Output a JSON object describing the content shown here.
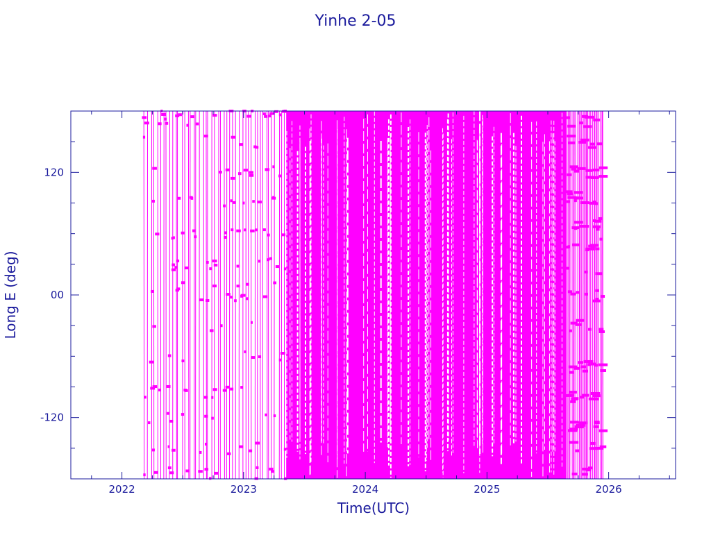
{
  "chart_data": {
    "type": "line",
    "title": "Yinhe 2-05",
    "xlabel": "Time(UTC)",
    "ylabel": "Long E (deg)",
    "xlim": [
      2021.58,
      2026.55
    ],
    "ylim": [
      -180,
      180
    ],
    "x_ticks": [
      "2022",
      "2023",
      "2024",
      "2025",
      "2026"
    ],
    "y_ticks": [
      "120",
      "00",
      "-120"
    ],
    "colors": {
      "axes": "#1a1a9c",
      "series": "#ff00ff"
    },
    "grid": false,
    "legend": "none",
    "series": [
      {
        "style": "dense longitude wraps, sparse early segment",
        "x_range": [
          2022.18,
          2023.35
        ],
        "approx_wrap_rate_per_year": 40,
        "clusters_y": [
          -175,
          -150,
          -120,
          -95,
          -60,
          -30,
          0,
          8,
          30,
          60,
          90,
          120,
          150,
          172,
          178
        ],
        "values_note": "longitude sweeps -180..180 repeatedly"
      },
      {
        "style": "very dense longitude wraps (solid band)",
        "x_range": [
          2023.35,
          2025.65
        ],
        "approx_wrap_rate_per_year": 300,
        "clusters_y": [
          -180,
          180
        ],
        "values_note": "longitude sweeps -180..180 continuously"
      },
      {
        "style": "dense wraps with step-like clusters",
        "x_range": [
          2025.65,
          2025.96
        ],
        "approx_wrap_rate_per_year": 90,
        "clusters_y": [
          -170,
          -150,
          -130,
          -100,
          -70,
          -30,
          0,
          25,
          50,
          70,
          95,
          120,
          150,
          170
        ],
        "values_note": "longitude sweeps -180..180 repeatedly"
      }
    ]
  }
}
